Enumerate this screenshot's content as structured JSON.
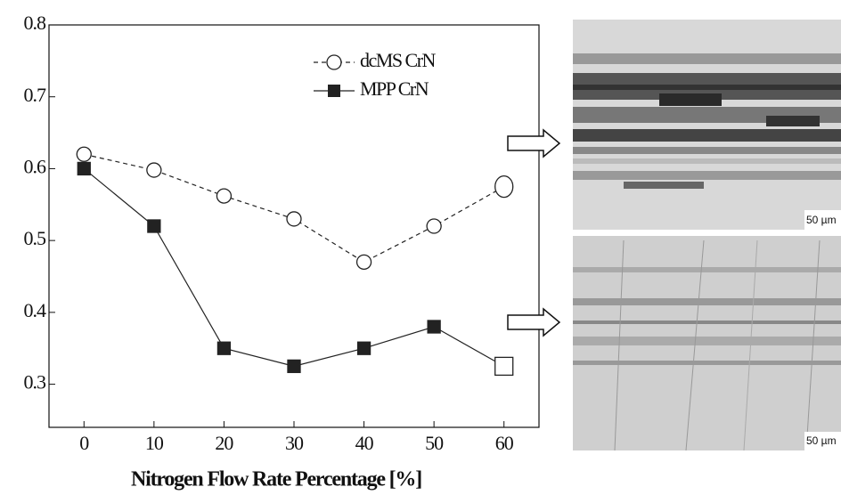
{
  "chart_data": {
    "type": "line",
    "x_label": "Nitrogen Flow Rate Percentage [%]",
    "x": [
      0,
      10,
      20,
      30,
      40,
      50,
      60
    ],
    "series": [
      {
        "name": "dcMS CrN",
        "color": "#222222",
        "values": [
          0.62,
          0.598,
          0.562,
          0.53,
          0.47,
          0.52,
          0.575
        ]
      },
      {
        "name": "MPP CrN",
        "color": "#222222",
        "values": [
          0.6,
          0.52,
          0.35,
          0.325,
          0.35,
          0.38,
          0.325
        ]
      }
    ],
    "xlim": [
      -5,
      65
    ],
    "xticks": [
      0,
      10,
      20,
      30,
      40,
      50,
      60
    ],
    "ylim": [
      0.24,
      0.8
    ],
    "yticks": [
      0.3,
      0.4,
      0.5,
      0.6,
      0.7,
      0.8
    ],
    "legend": "upper right"
  },
  "images": [
    {
      "scale_label": "50 µm"
    },
    {
      "scale_label": "50 µm"
    }
  ]
}
